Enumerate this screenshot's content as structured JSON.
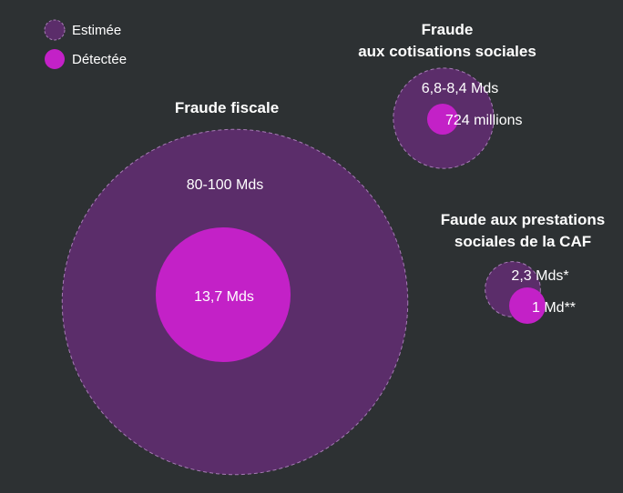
{
  "chart_data": {
    "type": "bubble",
    "legend": {
      "placement": "top-left",
      "items": [
        {
          "label": "Estimée",
          "color": "#5b2d6a",
          "style": "dashed-outline"
        },
        {
          "label": "Détectée",
          "color": "#c321c7",
          "style": "solid"
        }
      ]
    },
    "groups": [
      {
        "title_lines": [
          "Fraude fiscale"
        ],
        "estimated": {
          "label": "80-100 Mds",
          "value": 90
        },
        "detected": {
          "label": "13,7 Mds",
          "value": 13.7
        }
      },
      {
        "title_lines": [
          "Fraude",
          "aux cotisations sociales"
        ],
        "estimated": {
          "label": "6,8-8,4 Mds",
          "value": 7.6
        },
        "detected": {
          "label": "724 millions",
          "value": 0.724
        }
      },
      {
        "title_lines": [
          "Faude aux prestations",
          "sociales de la CAF"
        ],
        "estimated": {
          "label": "2,3 Mds*",
          "value": 2.3
        },
        "detected": {
          "label": "1 Md**",
          "value": 1
        }
      }
    ]
  }
}
